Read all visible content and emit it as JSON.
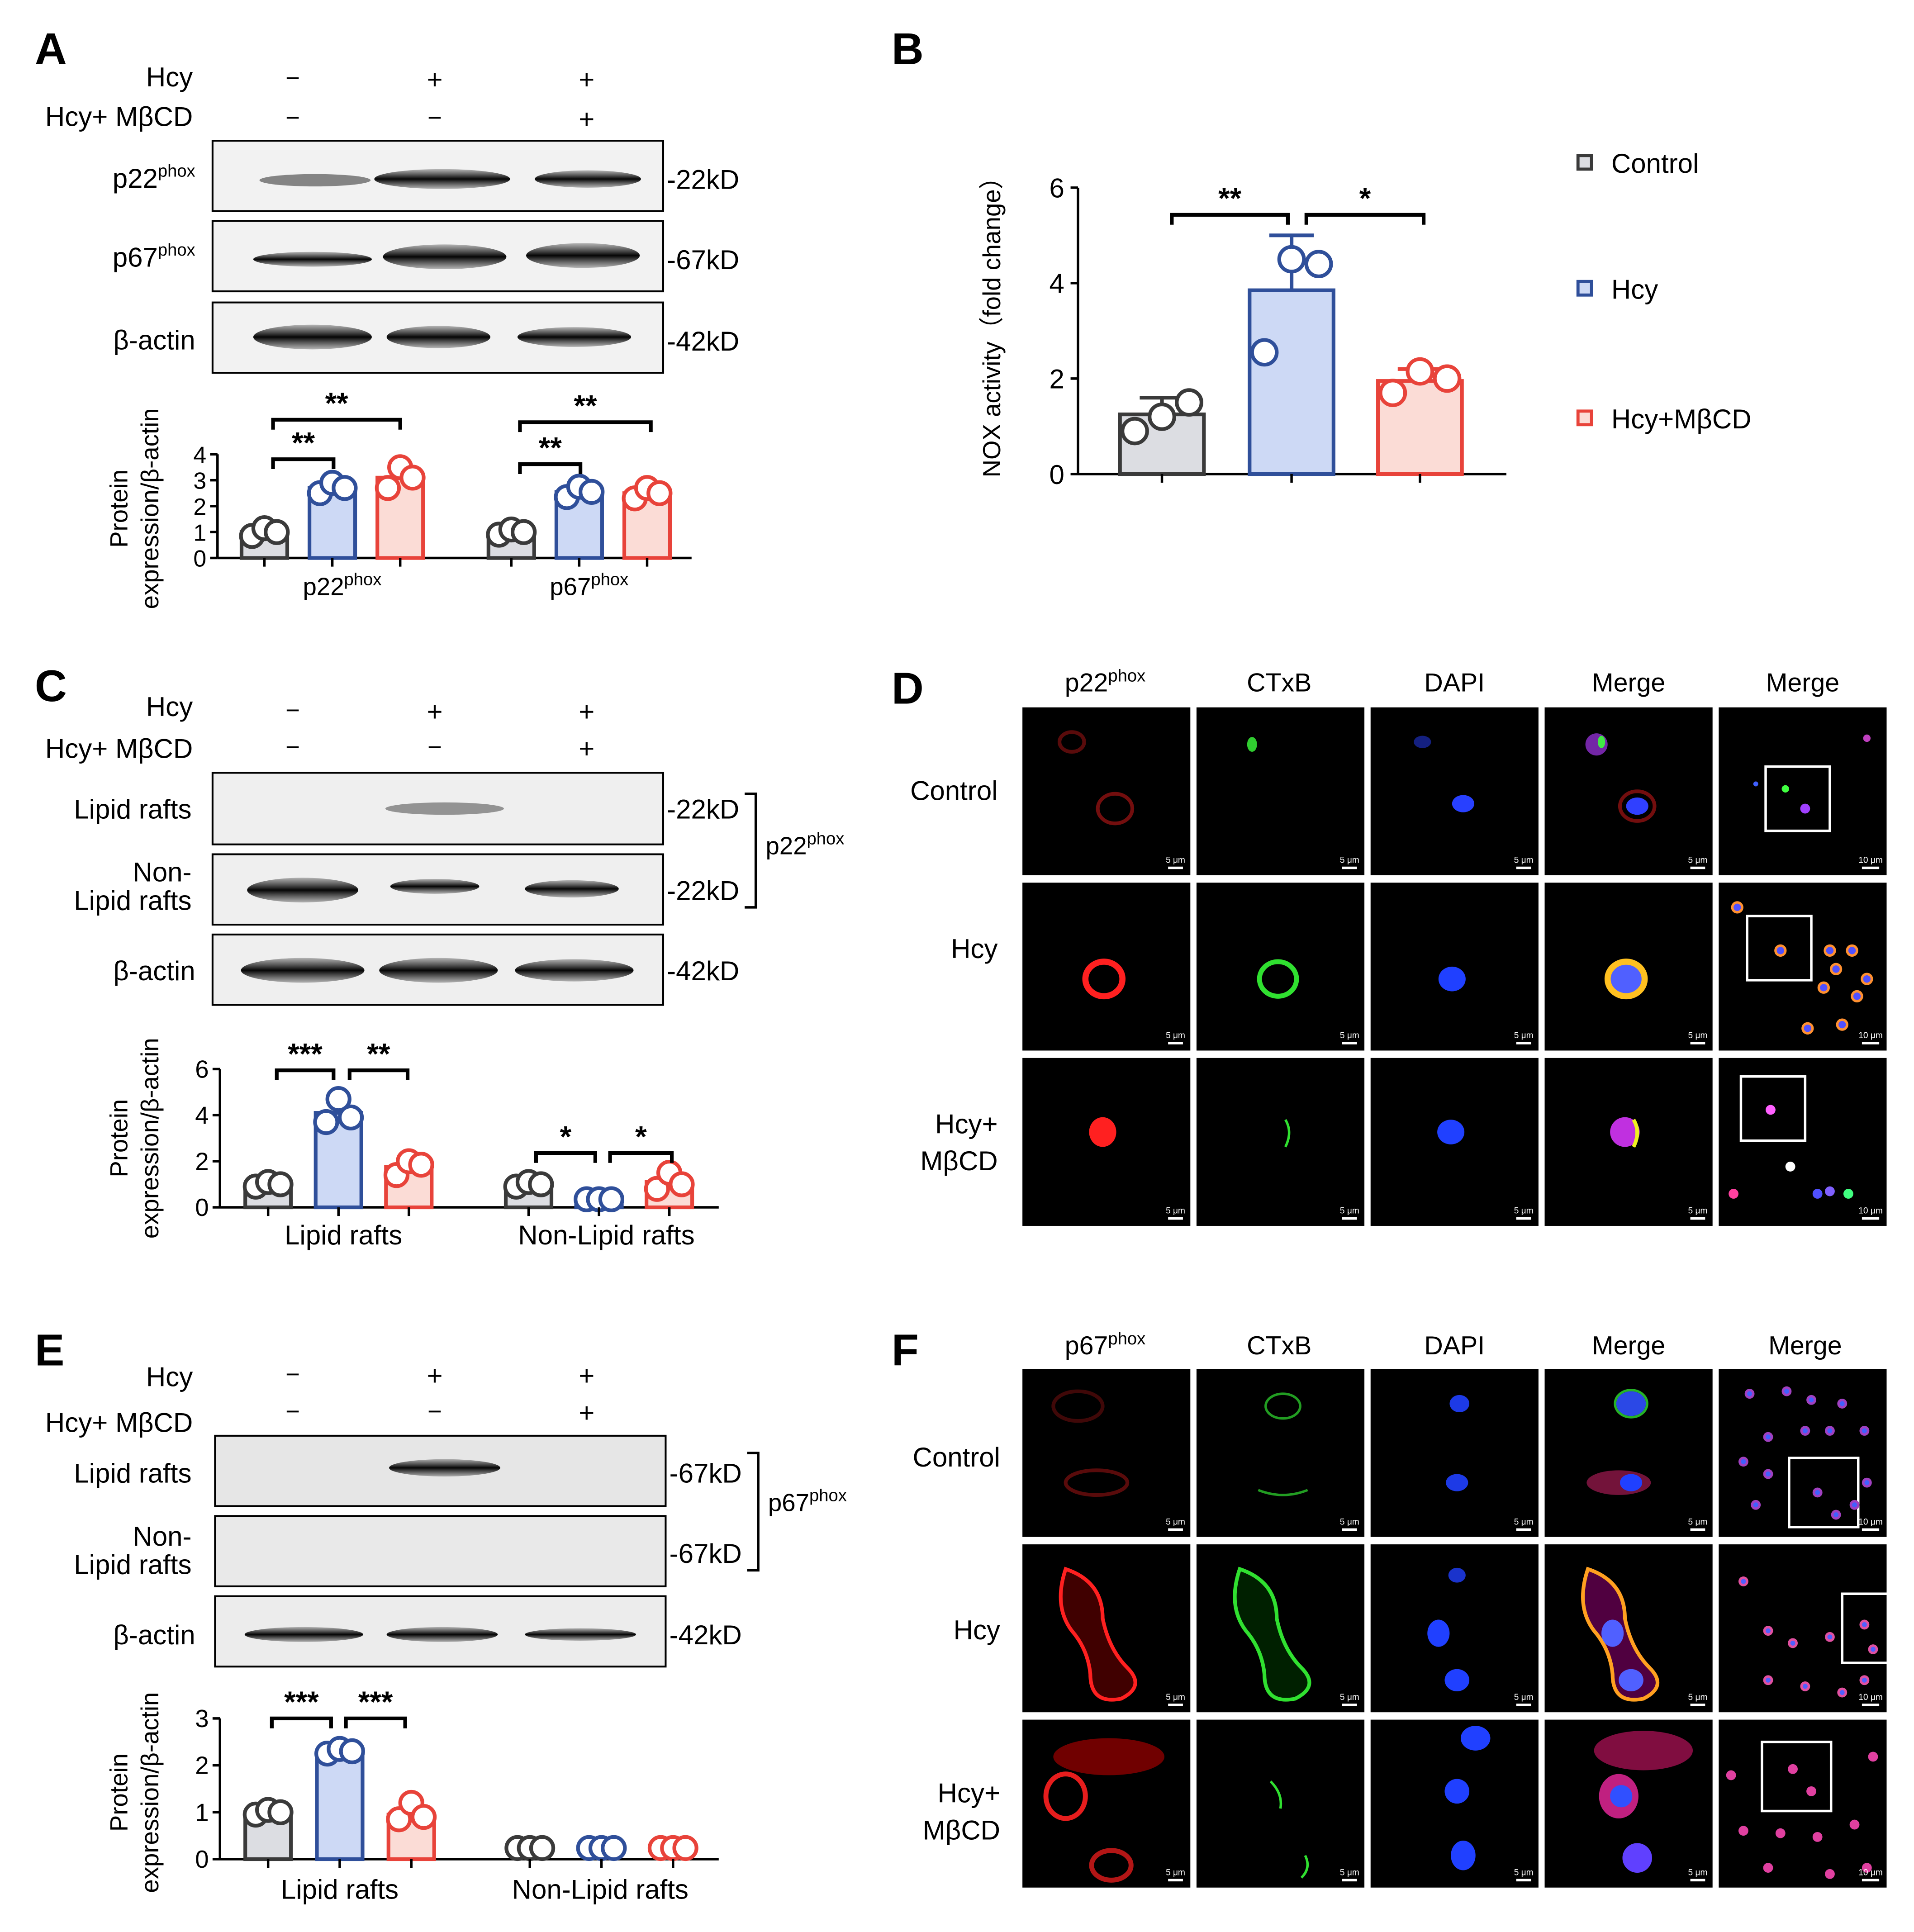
{
  "colors": {
    "control_stroke": "#3a3a3a",
    "control_fill": "#dcdde2",
    "hcy_stroke": "#2f4f9a",
    "hcy_fill": "#cdd9f5",
    "mbcd_stroke": "#e8433a",
    "mbcd_fill": "#fbdcd6"
  },
  "treatment_labels": {
    "hcy": "Hcy",
    "hcy_mbcd": "Hcy+ MβCD",
    "minus": "−",
    "plus": "+"
  },
  "common": {
    "protein_ylabel_1": "Protein",
    "protein_ylabel_2": "expression/β-actin",
    "phox_sup": "phox",
    "p22": "p22",
    "p67": "p67",
    "beta_actin": "β-actin",
    "kd22": "-22kD",
    "kd42": "-42kD",
    "kd67": "-67kD",
    "lipid_rafts": "Lipid rafts",
    "non_lipid_1": "Non-",
    "non_lipid_2": "Lipid rafts",
    "non_lipid_group": "Non-Lipid  rafts",
    "non_lipid_group_e": "Non-Lipid rafts"
  },
  "panel_A": {
    "letter": "A",
    "chart_data": {
      "type": "bar",
      "categories": [
        "p22phox",
        "p67phox"
      ],
      "series": [
        {
          "name": "Control",
          "values": [
            1.0,
            1.0
          ],
          "points": [
            [
              0.85,
              1.15,
              1.0
            ],
            [
              0.9,
              1.1,
              1.0
            ]
          ]
        },
        {
          "name": "Hcy",
          "values": [
            2.7,
            2.55
          ],
          "points": [
            [
              2.5,
              2.9,
              2.7
            ],
            [
              2.35,
              2.75,
              2.55
            ]
          ]
        },
        {
          "name": "Hcy+MβCD",
          "values": [
            3.1,
            2.5
          ],
          "points": [
            [
              2.7,
              3.5,
              3.1
            ],
            [
              2.3,
              2.7,
              2.5
            ]
          ]
        }
      ],
      "errors": [
        [
          0.15,
          0.12
        ],
        [
          0.2,
          0.2
        ],
        [
          0.4,
          0.2
        ]
      ],
      "yticks": [
        "0",
        "1",
        "2",
        "3",
        "4"
      ],
      "ylim": [
        0,
        4
      ],
      "sig_near": "**",
      "sig_far": "**"
    }
  },
  "panel_B": {
    "letter": "B",
    "ylabel": "NOX activity（fold change）",
    "legend": [
      "Control",
      "Hcy",
      "Hcy+MβCD"
    ],
    "chart_data": {
      "type": "bar",
      "categories": [
        "Control",
        "Hcy",
        "Hcy+MβCD"
      ],
      "values": [
        1.25,
        3.85,
        1.95
      ],
      "errors": [
        0.35,
        1.15,
        0.25
      ],
      "points": [
        [
          0.9,
          1.2,
          1.5
        ],
        [
          2.55,
          4.5,
          4.4
        ],
        [
          1.7,
          2.15,
          2.0
        ]
      ],
      "yticks": [
        "0",
        "2",
        "4",
        "6"
      ],
      "ylim": [
        0,
        6
      ],
      "sig_1": "**",
      "sig_2": "*"
    }
  },
  "panel_C": {
    "letter": "C",
    "bracket_label": "p22",
    "chart_data": {
      "type": "bar",
      "categories": [
        "Lipid rafts",
        "Non-Lipid rafts"
      ],
      "series": [
        {
          "name": "Control",
          "values": [
            1.0,
            1.0
          ],
          "points": [
            [
              0.9,
              1.1,
              1.0
            ],
            [
              0.9,
              1.1,
              1.0
            ]
          ]
        },
        {
          "name": "Hcy",
          "values": [
            4.1,
            0.35
          ],
          "points": [
            [
              3.7,
              4.7,
              3.9
            ],
            [
              0.35,
              0.35,
              0.35
            ]
          ]
        },
        {
          "name": "Hcy+MβCD",
          "values": [
            1.75,
            1.1
          ],
          "points": [
            [
              1.4,
              2.0,
              1.85
            ],
            [
              0.8,
              1.5,
              1.0
            ]
          ]
        }
      ],
      "errors": [
        [
          0.1,
          0.1
        ],
        [
          0.55,
          0.05
        ],
        [
          0.3,
          0.4
        ]
      ],
      "yticks": [
        "0",
        "2",
        "4",
        "6"
      ],
      "ylim": [
        0,
        6
      ],
      "sig_lipid_1": "***",
      "sig_lipid_2": "**",
      "sig_non_1": "*",
      "sig_non_2": "*"
    }
  },
  "panel_D": {
    "letter": "D",
    "col_headers": [
      "p22",
      "CTxB",
      "DAPI",
      "Merge",
      "Merge"
    ],
    "row_labels": [
      "Control",
      "Hcy",
      "Hcy+",
      "MβCD"
    ],
    "scale_5": "5 μm",
    "scale_10": "10 μm"
  },
  "panel_E": {
    "letter": "E",
    "bracket_label": "p67",
    "chart_data": {
      "type": "bar",
      "categories": [
        "Lipid rafts",
        "Non-Lipid rafts"
      ],
      "series": [
        {
          "name": "Control",
          "values": [
            1.0,
            0.0
          ],
          "points": [
            [
              0.95,
              1.05,
              1.0
            ],
            [
              0,
              0,
              0
            ]
          ]
        },
        {
          "name": "Hcy",
          "values": [
            2.3,
            0.0
          ],
          "points": [
            [
              2.25,
              2.35,
              2.3
            ],
            [
              0,
              0,
              0
            ]
          ]
        },
        {
          "name": "Hcy+MβCD",
          "values": [
            0.95,
            0.0
          ],
          "points": [
            [
              0.85,
              1.2,
              0.9
            ],
            [
              0,
              0,
              0
            ]
          ]
        }
      ],
      "errors": [
        [
          0.05,
          0
        ],
        [
          0.1,
          0
        ],
        [
          0.2,
          0
        ]
      ],
      "yticks": [
        "0",
        "1",
        "2",
        "3"
      ],
      "ylim": [
        0,
        3
      ],
      "sig_1": "***",
      "sig_2": "***"
    }
  },
  "panel_F": {
    "letter": "F",
    "col_headers": [
      "p67",
      "CTxB",
      "DAPI",
      "Merge",
      "Merge"
    ],
    "row_labels": [
      "Control",
      "Hcy",
      "Hcy+",
      "MβCD"
    ],
    "scale_5": "5 μm",
    "scale_10": "10 μm"
  }
}
